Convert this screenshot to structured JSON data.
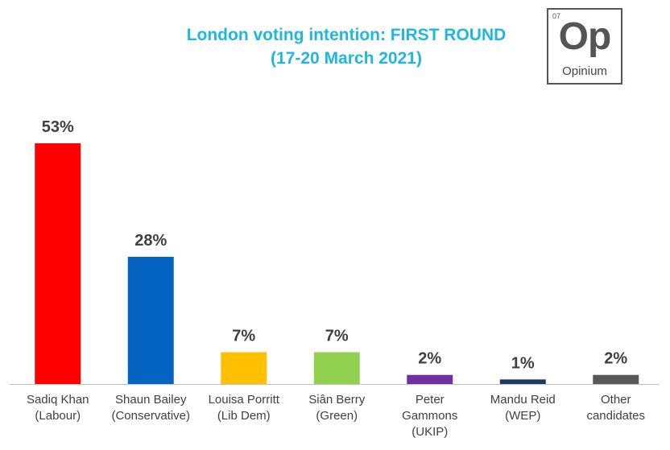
{
  "header": {
    "title_line1": "London voting intention: FIRST ROUND",
    "title_line2": "(17-20 March 2021)",
    "title_color": "#1FB7E0"
  },
  "logo": {
    "number": "07",
    "symbol": "Op",
    "name": "Opinium"
  },
  "chart_data": {
    "type": "bar",
    "categories": [
      [
        "Sadiq Khan",
        "(Labour)"
      ],
      [
        "Shaun Bailey",
        "(Conservative)"
      ],
      [
        "Louisa Porritt",
        "(Lib Dem)"
      ],
      [
        "Siân Berry",
        "(Green)"
      ],
      [
        "Peter",
        "Gammons",
        "(UKIP)"
      ],
      [
        "Mandu Reid",
        "(WEP)"
      ],
      [
        "Other",
        "candidates"
      ]
    ],
    "values": [
      53,
      28,
      7,
      7,
      2,
      1,
      2
    ],
    "value_labels": [
      "53%",
      "28%",
      "7%",
      "7%",
      "2%",
      "1%",
      "2%"
    ],
    "colors": [
      "#FF0000",
      "#0563C1",
      "#FFC000",
      "#92D050",
      "#7030A0",
      "#1F3864",
      "#595959"
    ],
    "ylim": [
      0,
      60
    ],
    "grid": false,
    "legend": "none"
  }
}
